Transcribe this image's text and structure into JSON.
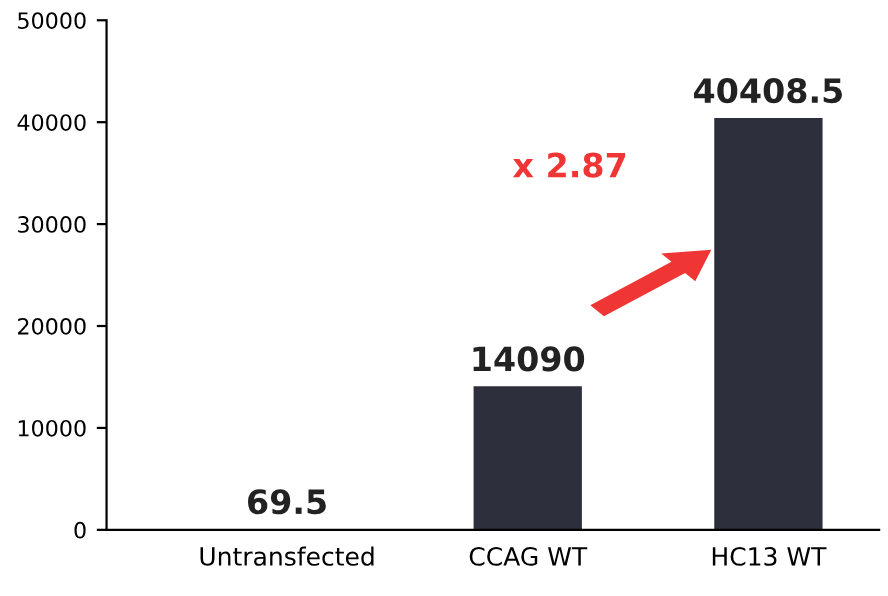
{
  "chart_data": {
    "type": "bar",
    "categories": [
      "Untransfected",
      "CCAG WT",
      "HC13 WT"
    ],
    "values": [
      69.5,
      14090,
      40408.5
    ],
    "color": "#2e2f3d",
    "ylim": [
      0,
      50000
    ],
    "yticks": [
      0,
      10000,
      20000,
      30000,
      40000,
      50000
    ],
    "grid": false,
    "data_labels": true,
    "annotations": [
      "x 2.87"
    ]
  }
}
